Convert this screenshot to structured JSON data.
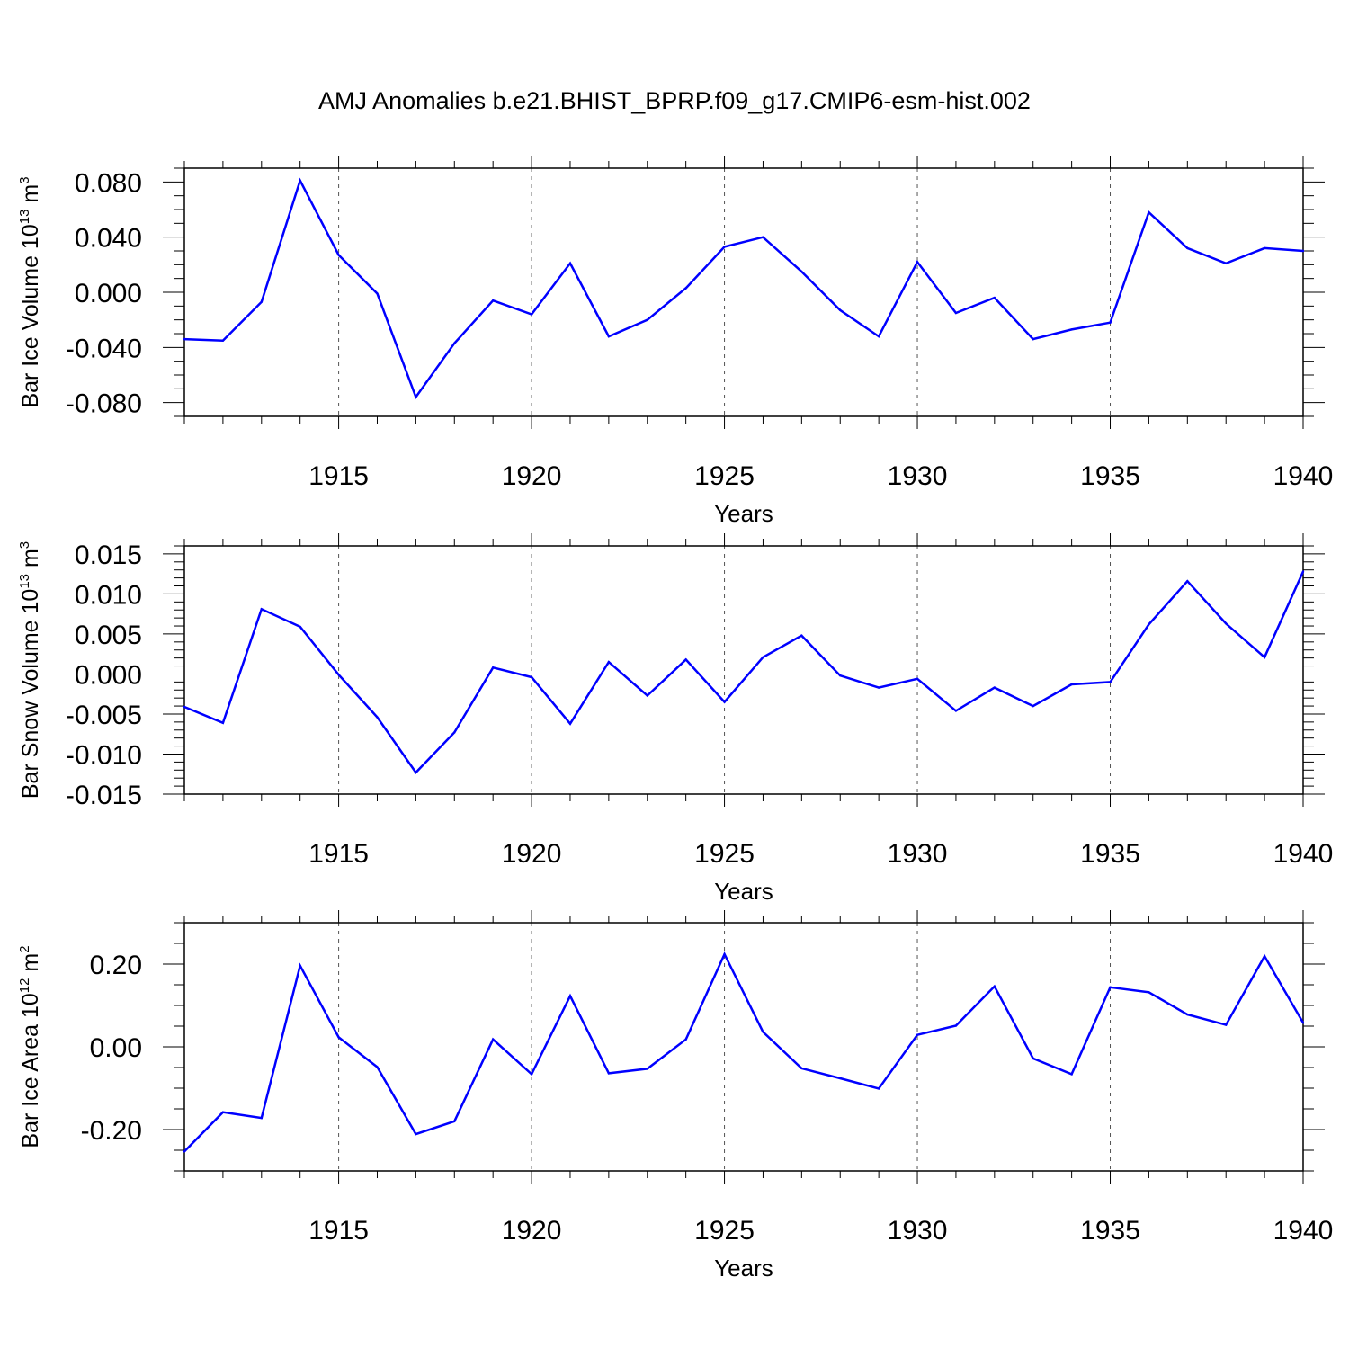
{
  "title": "AMJ Anomalies b.e21.BHIST_BPRP.f09_g17.CMIP6-esm-hist.002",
  "chart_data": [
    {
      "type": "line",
      "ylabel": "Bar Ice Volume 10",
      "ylabel_exp": "13",
      "ylabel_unit": " m",
      "ylabel_unit_exp": "3",
      "xlabel": "Years",
      "xlim": [
        1911,
        1940
      ],
      "ylim": [
        -0.09,
        0.09
      ],
      "xticks": [
        "1915",
        "1920",
        "1925",
        "1930",
        "1935",
        "1940"
      ],
      "yticks": [
        "0.080",
        "0.040",
        "0.000",
        "-0.040",
        "-0.080"
      ],
      "ytick_values": [
        0.08,
        0.04,
        0.0,
        -0.04,
        -0.08
      ],
      "y_minor_step": 0.01,
      "grid": "dashed vertical lines at major x ticks",
      "line_color": "#0000ff",
      "x": [
        1911,
        1912,
        1913,
        1914,
        1915,
        1916,
        1917,
        1918,
        1919,
        1920,
        1921,
        1922,
        1923,
        1924,
        1925,
        1926,
        1927,
        1928,
        1929,
        1930,
        1931,
        1932,
        1933,
        1934,
        1935,
        1936,
        1937,
        1938,
        1939,
        1940
      ],
      "values": [
        -0.034,
        -0.035,
        -0.007,
        0.081,
        0.027,
        -0.001,
        -0.076,
        -0.037,
        -0.006,
        -0.016,
        0.021,
        -0.032,
        -0.02,
        0.003,
        0.033,
        0.04,
        0.015,
        -0.013,
        -0.032,
        0.022,
        -0.015,
        -0.004,
        -0.034,
        -0.027,
        -0.022,
        0.058,
        0.032,
        0.021,
        0.032,
        0.03
      ]
    },
    {
      "type": "line",
      "ylabel": "Bar Snow Volume 10",
      "ylabel_exp": "13",
      "ylabel_unit": " m",
      "ylabel_unit_exp": "3",
      "xlabel": "Years",
      "xlim": [
        1911,
        1940
      ],
      "ylim": [
        -0.015,
        0.016
      ],
      "xticks": [
        "1915",
        "1920",
        "1925",
        "1930",
        "1935",
        "1940"
      ],
      "yticks": [
        "0.015",
        "0.010",
        "0.005",
        "0.000",
        "-0.005",
        "-0.010",
        "-0.015"
      ],
      "ytick_values": [
        0.015,
        0.01,
        0.005,
        0.0,
        -0.005,
        -0.01,
        -0.015
      ],
      "y_minor_step": 0.001,
      "grid": "dashed vertical lines at major x ticks",
      "line_color": "#0000ff",
      "x": [
        1911,
        1912,
        1913,
        1914,
        1915,
        1916,
        1917,
        1918,
        1919,
        1920,
        1921,
        1922,
        1923,
        1924,
        1925,
        1926,
        1927,
        1928,
        1929,
        1930,
        1931,
        1932,
        1933,
        1934,
        1935,
        1936,
        1937,
        1938,
        1939,
        1940
      ],
      "values": [
        -0.0041,
        -0.0061,
        0.0081,
        0.0059,
        -0.0001,
        -0.0054,
        -0.0123,
        -0.0073,
        0.0008,
        -0.0004,
        -0.0062,
        0.0015,
        -0.0027,
        0.0018,
        -0.0035,
        0.0021,
        0.0048,
        -0.0002,
        -0.0017,
        -0.0006,
        -0.0046,
        -0.0017,
        -0.004,
        -0.0013,
        -0.001,
        0.0062,
        0.0116,
        0.0063,
        0.0021,
        0.0128
      ]
    },
    {
      "type": "line",
      "ylabel": "Bar Ice Area 10",
      "ylabel_exp": "12",
      "ylabel_unit": " m",
      "ylabel_unit_exp": "2",
      "xlabel": "Years",
      "xlim": [
        1911,
        1940
      ],
      "ylim": [
        -0.3,
        0.3
      ],
      "xticks": [
        "1915",
        "1920",
        "1925",
        "1930",
        "1935",
        "1940"
      ],
      "yticks": [
        "0.20",
        "0.00",
        "-0.20"
      ],
      "ytick_values": [
        0.2,
        0.0,
        -0.2
      ],
      "y_minor_step": 0.05,
      "grid": "dashed vertical lines at major x ticks",
      "line_color": "#0000ff",
      "x": [
        1911,
        1912,
        1913,
        1914,
        1915,
        1916,
        1917,
        1918,
        1919,
        1920,
        1921,
        1922,
        1923,
        1924,
        1925,
        1926,
        1927,
        1928,
        1929,
        1930,
        1931,
        1932,
        1933,
        1934,
        1935,
        1936,
        1937,
        1938,
        1939,
        1940
      ],
      "values": [
        -0.253,
        -0.158,
        -0.172,
        0.196,
        0.023,
        -0.049,
        -0.211,
        -0.18,
        0.018,
        -0.066,
        0.123,
        -0.064,
        -0.053,
        0.018,
        0.224,
        0.036,
        -0.052,
        -0.076,
        -0.101,
        0.029,
        0.051,
        0.146,
        -0.028,
        -0.066,
        0.144,
        0.132,
        0.078,
        0.053,
        0.219,
        0.058
      ]
    }
  ]
}
